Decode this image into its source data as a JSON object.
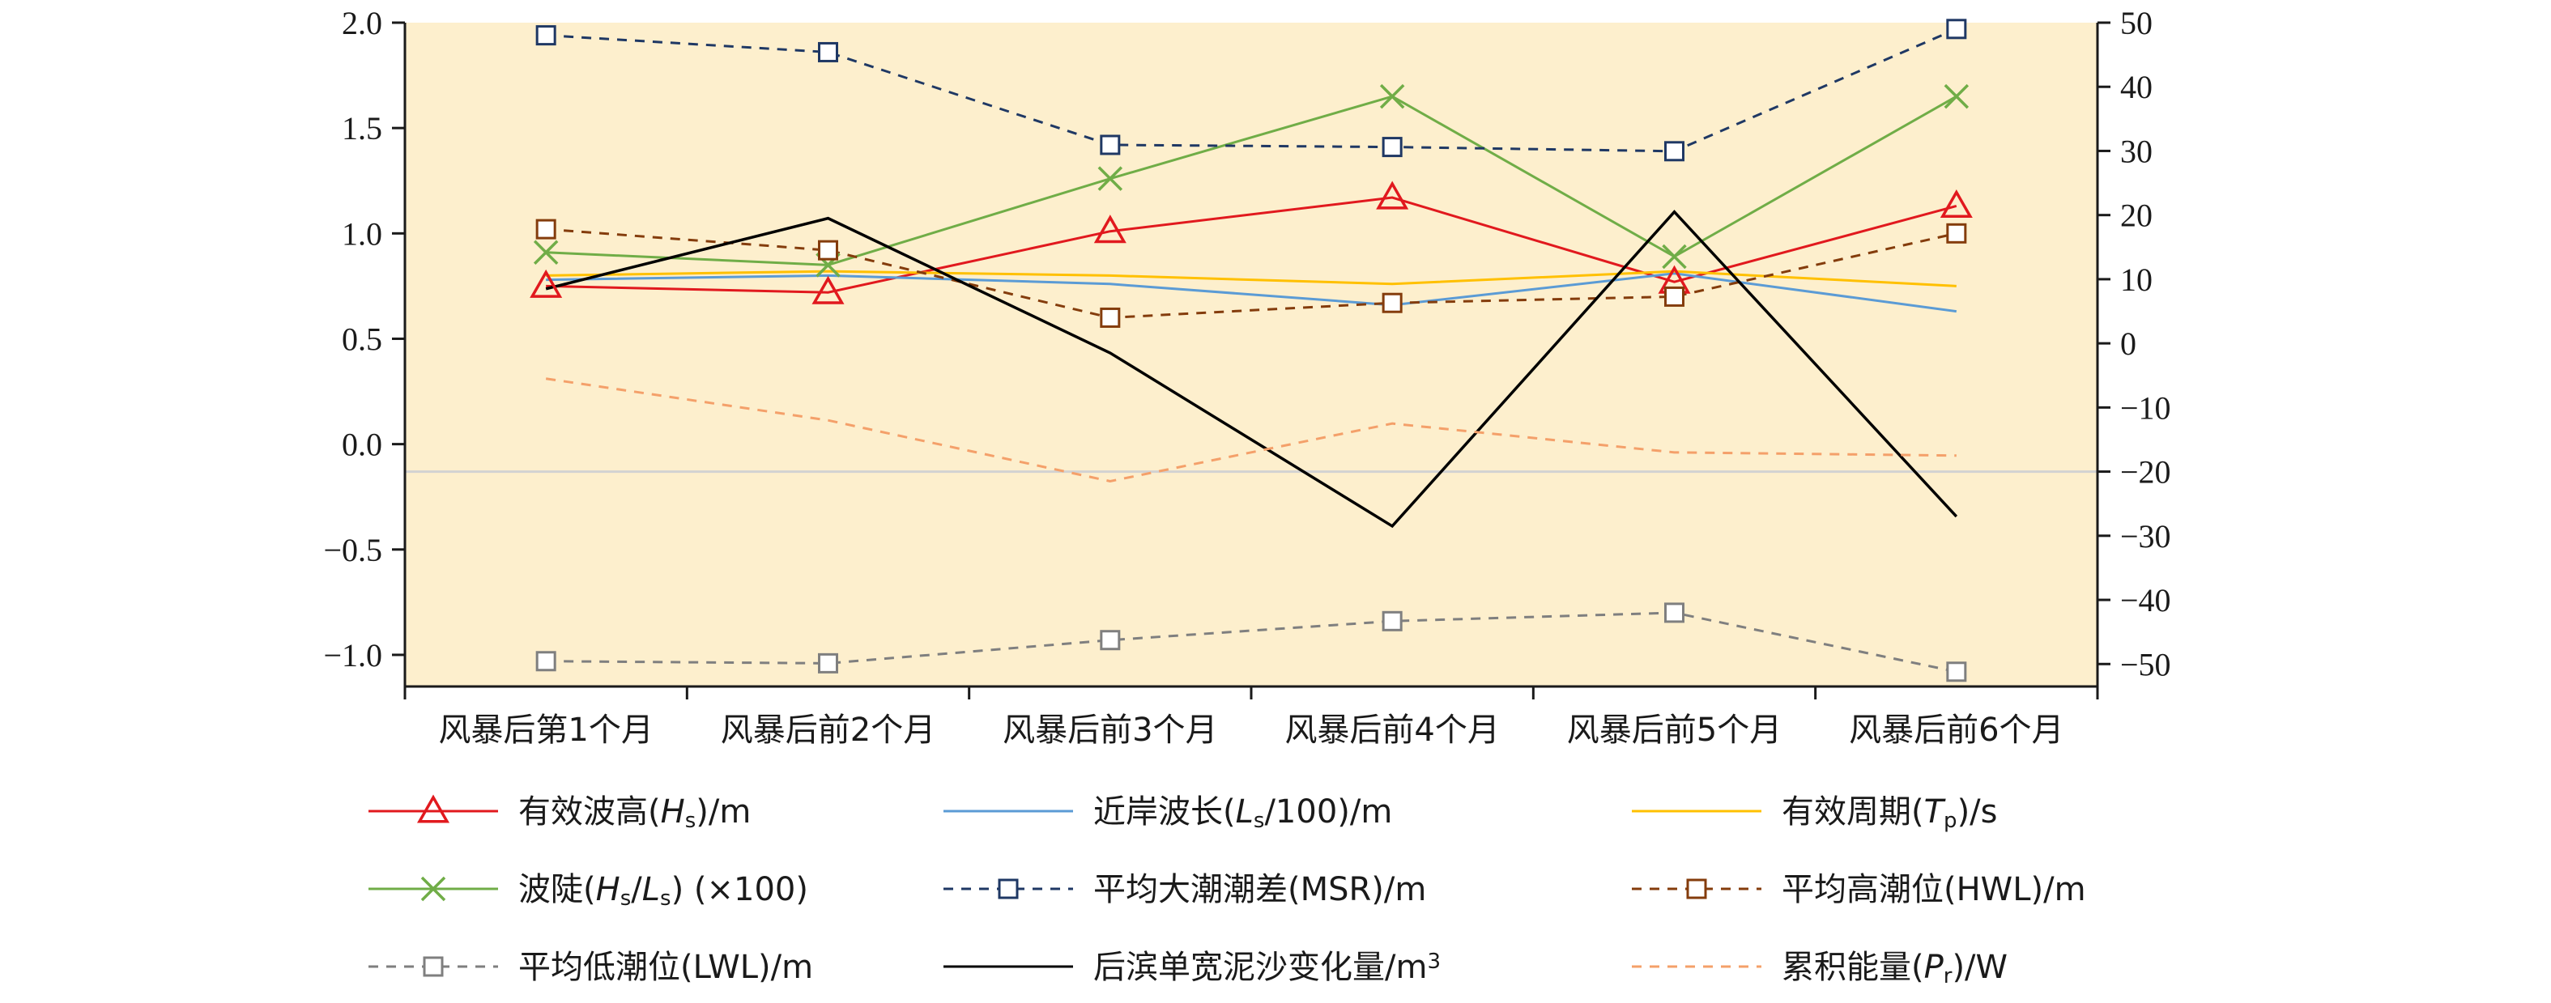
{
  "chart_data": {
    "type": "line",
    "title": "",
    "categories": [
      "风暴后第1个月",
      "风暴后前2个月",
      "风暴后前3个月",
      "风暴后前4个月",
      "风暴后前5个月",
      "风暴后前6个月"
    ],
    "ylim_left": [
      -1.15,
      2.0
    ],
    "yticks_left": [
      2.0,
      1.5,
      1.0,
      0.5,
      0.0,
      -0.5,
      -1.0
    ],
    "yticklabels_left": [
      "2.0",
      "1.5",
      "1.0",
      "0.5",
      "0.0",
      "−0.5",
      "−1.0"
    ],
    "ylim_right": [
      -53.5,
      50
    ],
    "yticks_right": [
      50,
      40,
      30,
      20,
      10,
      0,
      -10,
      -20,
      -30,
      -40,
      -50
    ],
    "yticklabels_right": [
      "50",
      "40",
      "30",
      "20",
      "10",
      "0",
      "−10",
      "−20",
      "−30",
      "−40",
      "−50"
    ],
    "plot_background": "#fdefcd",
    "legend_position": "bottom",
    "series": [
      {
        "key": "hs",
        "axis": "left",
        "color": "#e1191e",
        "dash": "",
        "marker": "triangle",
        "values": [
          0.75,
          0.72,
          1.01,
          1.17,
          0.77,
          1.13
        ],
        "legend": {
          "parts": [
            {
              "t": "有效波高("
            },
            {
              "t": "H",
              "i": true
            },
            {
              "t": "s",
              "sub": true
            },
            {
              "t": ")/m"
            }
          ]
        }
      },
      {
        "key": "ls",
        "axis": "left",
        "color": "#5b9bd5",
        "dash": "",
        "marker": "none",
        "values": [
          0.78,
          0.8,
          0.76,
          0.66,
          0.81,
          0.63
        ],
        "legend": {
          "parts": [
            {
              "t": "近岸波长("
            },
            {
              "t": "L",
              "i": true
            },
            {
              "t": "s",
              "sub": true
            },
            {
              "t": "/100)/m"
            }
          ]
        }
      },
      {
        "key": "tp",
        "axis": "left",
        "color": "#ffc000",
        "dash": "",
        "marker": "none",
        "values": [
          0.8,
          0.82,
          0.8,
          0.76,
          0.82,
          0.75
        ],
        "legend": {
          "parts": [
            {
              "t": "有效周期("
            },
            {
              "t": "T",
              "i": true
            },
            {
              "t": "p",
              "sub": true
            },
            {
              "t": ")/s"
            }
          ]
        }
      },
      {
        "key": "steep",
        "axis": "left",
        "color": "#70ad47",
        "dash": "",
        "marker": "x",
        "values": [
          0.91,
          0.85,
          1.26,
          1.65,
          0.89,
          1.65
        ],
        "legend": {
          "parts": [
            {
              "t": "波陡("
            },
            {
              "t": "H",
              "i": true
            },
            {
              "t": "s",
              "sub": true
            },
            {
              "t": "/"
            },
            {
              "t": "L",
              "i": true
            },
            {
              "t": "s",
              "sub": true
            },
            {
              "t": ") (×100)"
            }
          ]
        }
      },
      {
        "key": "msr",
        "axis": "left",
        "color": "#1f3864",
        "dash": "12 10",
        "marker": "square",
        "values": [
          1.94,
          1.86,
          1.42,
          1.41,
          1.39,
          1.97
        ],
        "legend": {
          "parts": [
            {
              "t": "平均大潮潮差(MSR)/m"
            }
          ]
        }
      },
      {
        "key": "hwl",
        "axis": "left",
        "color": "#843c0c",
        "dash": "12 10",
        "marker": "square",
        "values": [
          1.02,
          0.92,
          0.6,
          0.67,
          0.7,
          1.0
        ],
        "legend": {
          "parts": [
            {
              "t": "平均高潮位(HWL)/m"
            }
          ]
        }
      },
      {
        "key": "lwl",
        "axis": "left",
        "color": "#7f7f7f",
        "dash": "12 10",
        "marker": "square",
        "values": [
          -1.03,
          -1.04,
          -0.93,
          -0.84,
          -0.8,
          -1.08
        ],
        "legend": {
          "parts": [
            {
              "t": "平均低潮位(LWL)/m"
            }
          ]
        }
      },
      {
        "key": "mud",
        "axis": "right",
        "color": "#000000",
        "dash": "",
        "marker": "none",
        "values": [
          8.5,
          19.5,
          -1.5,
          -28.5,
          20.5,
          -27.0
        ],
        "legend": {
          "parts": [
            {
              "t": "后滨单宽泥沙变化量/m"
            },
            {
              "t": "3",
              "sup": true
            }
          ]
        }
      },
      {
        "key": "energy",
        "axis": "right",
        "color": "#f4a06a",
        "dash": "12 10",
        "marker": "none",
        "values": [
          -5.5,
          -12.0,
          -21.5,
          -12.5,
          -17.0,
          -17.5
        ],
        "legend": {
          "parts": [
            {
              "t": "累积能量("
            },
            {
              "t": "P",
              "i": true
            },
            {
              "t": "r",
              "sub": true
            },
            {
              "t": ")/W"
            }
          ]
        }
      }
    ]
  }
}
